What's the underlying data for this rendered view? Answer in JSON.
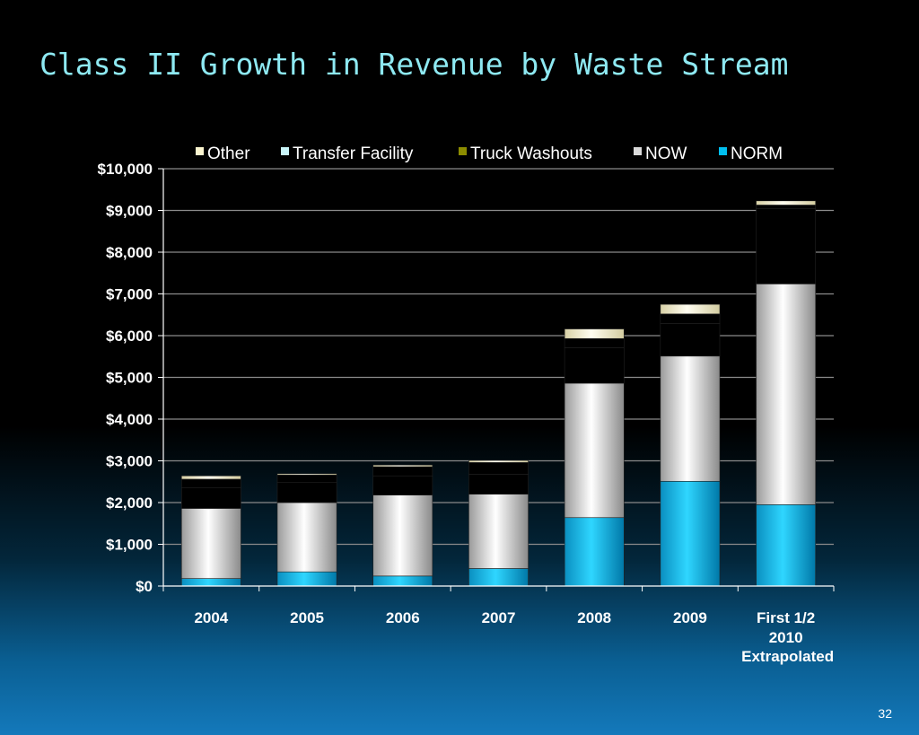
{
  "slide": {
    "title": "Class II Growth in Revenue by Waste Stream",
    "page_number": "32"
  },
  "colors": {
    "NORM": "#00bfef",
    "NOW": "#d9d9d9",
    "Truck Washouts": "#8c8c00",
    "Transfer Facility": "#c9f6fa",
    "Other": "#fbf5cf",
    "axis": "#ffffff",
    "grid": "#8a8a8a",
    "text": "#ffffff"
  },
  "chart_data": {
    "type": "bar",
    "stacked": true,
    "categories": [
      "2004",
      "2005",
      "2006",
      "2007",
      "2008",
      "2009",
      "First 1/2 2010"
    ],
    "category_sublabels": [
      "",
      "",
      "",
      "",
      "",
      "",
      "Extrapolated"
    ],
    "series": [
      {
        "name": "NORM",
        "values": [
          180,
          340,
          240,
          420,
          1640,
          2510,
          1950
        ]
      },
      {
        "name": "NOW",
        "values": [
          1680,
          1660,
          1940,
          1780,
          3220,
          3000,
          5290
        ]
      },
      {
        "name": "Truck Washouts",
        "values": [
          490,
          480,
          460,
          480,
          850,
          780,
          1800
        ]
      },
      {
        "name": "Transfer Facility",
        "values": [
          210,
          180,
          220,
          280,
          220,
          230,
          90
        ]
      },
      {
        "name": "Other",
        "values": [
          80,
          30,
          40,
          50,
          230,
          230,
          100
        ]
      }
    ],
    "legend_order": [
      "Other",
      "Transfer Facility",
      "Truck Washouts",
      "NOW",
      "NORM"
    ],
    "legend_position": "top",
    "ylim": [
      0,
      10000
    ],
    "yticks": [
      0,
      1000,
      2000,
      3000,
      4000,
      5000,
      6000,
      7000,
      8000,
      9000,
      10000
    ],
    "ytick_labels": [
      "$0",
      "$1,000",
      "$2,000",
      "$3,000",
      "$4,000",
      "$5,000",
      "$6,000",
      "$7,000",
      "$8,000",
      "$9,000",
      "$10,000"
    ],
    "grid": true,
    "xlabel": "",
    "ylabel": ""
  }
}
